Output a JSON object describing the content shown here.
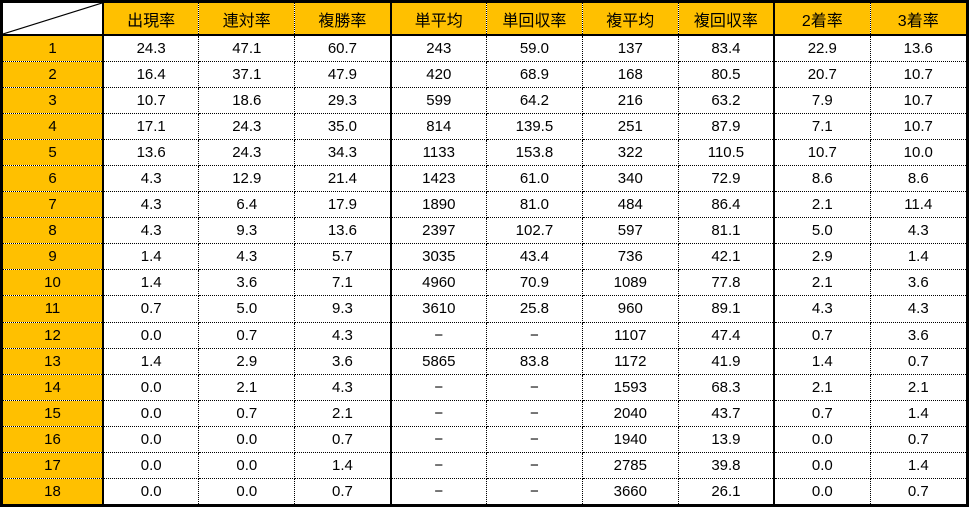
{
  "colors": {
    "header_bg": "#FFC000",
    "cell_bg": "#FFFFFF",
    "grid_line": "#000000"
  },
  "table": {
    "corner_label": "",
    "columns": [
      "出現率",
      "連対率",
      "複勝率",
      "単平均",
      "単回収率",
      "複平均",
      "複回収率",
      "2着率",
      "3着率"
    ],
    "group_separator_after_indexes": [
      2,
      6
    ],
    "rows": [
      {
        "label": "1",
        "values": [
          "24.3",
          "47.1",
          "60.7",
          "243",
          "59.0",
          "137",
          "83.4",
          "22.9",
          "13.6"
        ]
      },
      {
        "label": "2",
        "values": [
          "16.4",
          "37.1",
          "47.9",
          "420",
          "68.9",
          "168",
          "80.5",
          "20.7",
          "10.7"
        ]
      },
      {
        "label": "3",
        "values": [
          "10.7",
          "18.6",
          "29.3",
          "599",
          "64.2",
          "216",
          "63.2",
          "7.9",
          "10.7"
        ]
      },
      {
        "label": "4",
        "values": [
          "17.1",
          "24.3",
          "35.0",
          "814",
          "139.5",
          "251",
          "87.9",
          "7.1",
          "10.7"
        ]
      },
      {
        "label": "5",
        "values": [
          "13.6",
          "24.3",
          "34.3",
          "1133",
          "153.8",
          "322",
          "110.5",
          "10.7",
          "10.0"
        ]
      },
      {
        "label": "6",
        "values": [
          "4.3",
          "12.9",
          "21.4",
          "1423",
          "61.0",
          "340",
          "72.9",
          "8.6",
          "8.6"
        ]
      },
      {
        "label": "7",
        "values": [
          "4.3",
          "6.4",
          "17.9",
          "1890",
          "81.0",
          "484",
          "86.4",
          "2.1",
          "11.4"
        ]
      },
      {
        "label": "8",
        "values": [
          "4.3",
          "9.3",
          "13.6",
          "2397",
          "102.7",
          "597",
          "81.1",
          "5.0",
          "4.3"
        ]
      },
      {
        "label": "9",
        "values": [
          "1.4",
          "4.3",
          "5.7",
          "3035",
          "43.4",
          "736",
          "42.1",
          "2.9",
          "1.4"
        ]
      },
      {
        "label": "10",
        "values": [
          "1.4",
          "3.6",
          "7.1",
          "4960",
          "70.9",
          "1089",
          "77.8",
          "2.1",
          "3.6"
        ]
      },
      {
        "label": "11",
        "values": [
          "0.7",
          "5.0",
          "9.3",
          "3610",
          "25.8",
          "960",
          "89.1",
          "4.3",
          "4.3"
        ]
      },
      {
        "label": "12",
        "values": [
          "0.0",
          "0.7",
          "4.3",
          "−",
          "−",
          "1107",
          "47.4",
          "0.7",
          "3.6"
        ]
      },
      {
        "label": "13",
        "values": [
          "1.4",
          "2.9",
          "3.6",
          "5865",
          "83.8",
          "1172",
          "41.9",
          "1.4",
          "0.7"
        ]
      },
      {
        "label": "14",
        "values": [
          "0.0",
          "2.1",
          "4.3",
          "−",
          "−",
          "1593",
          "68.3",
          "2.1",
          "2.1"
        ]
      },
      {
        "label": "15",
        "values": [
          "0.0",
          "0.7",
          "2.1",
          "−",
          "−",
          "2040",
          "43.7",
          "0.7",
          "1.4"
        ]
      },
      {
        "label": "16",
        "values": [
          "0.0",
          "0.0",
          "0.7",
          "−",
          "−",
          "1940",
          "13.9",
          "0.0",
          "0.7"
        ]
      },
      {
        "label": "17",
        "values": [
          "0.0",
          "0.0",
          "1.4",
          "−",
          "−",
          "2785",
          "39.8",
          "0.0",
          "1.4"
        ]
      },
      {
        "label": "18",
        "values": [
          "0.0",
          "0.0",
          "0.7",
          "−",
          "−",
          "3660",
          "26.1",
          "0.0",
          "0.7"
        ]
      }
    ]
  }
}
